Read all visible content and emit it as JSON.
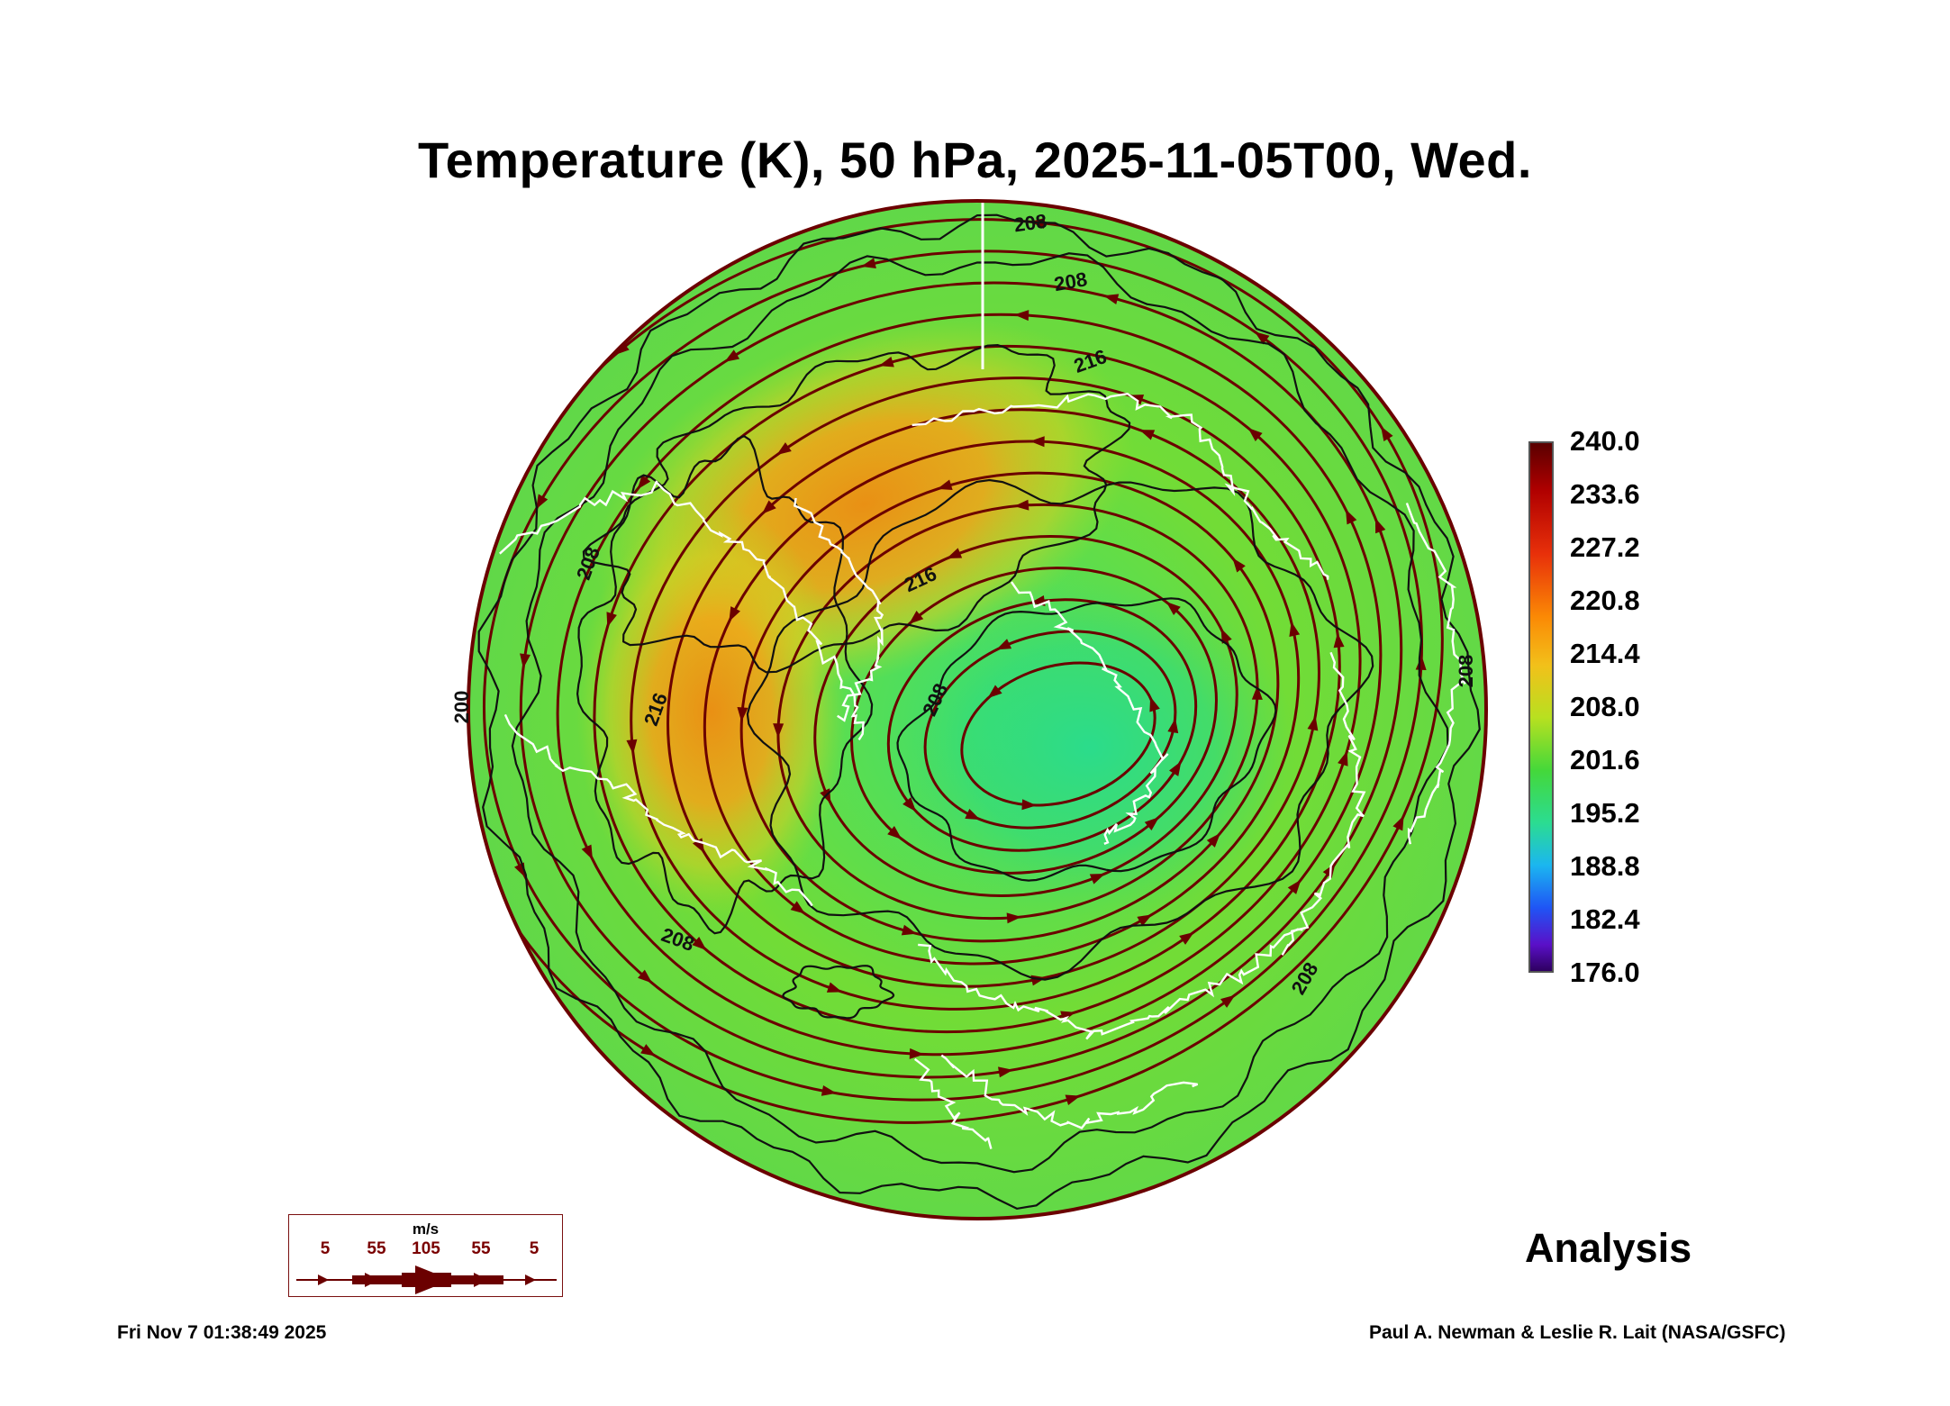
{
  "title": "Temperature (K), 50 hPa, 2025-11-05T00, Wed.",
  "colorbar": {
    "labels": [
      "240.0",
      "233.6",
      "227.2",
      "220.8",
      "214.4",
      "208.0",
      "201.6",
      "195.2",
      "188.8",
      "182.4",
      "176.0"
    ]
  },
  "contour_labels": [
    "208",
    "208",
    "216",
    "216",
    "208",
    "216",
    "208",
    "200",
    "208",
    "208",
    "208"
  ],
  "wind_legend": {
    "unit": "m/s",
    "values": [
      "5",
      "55",
      "105",
      "55",
      "5"
    ]
  },
  "badge": "Analysis",
  "footer": {
    "timestamp": "Fri Nov  7 01:38:49 2025",
    "credit": "Paul A. Newman & Leslie R. Lait (NASA/GSFC)"
  },
  "colors": {
    "coast": "#ffffff",
    "streamline": "#6b0000",
    "contour": "#111111"
  }
}
